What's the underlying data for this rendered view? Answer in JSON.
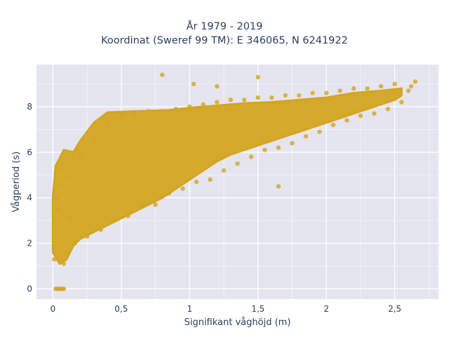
{
  "chart_data": {
    "type": "scatter",
    "title_line1": "År 1979 - 2019",
    "title_line2": "Koordinat (Sweref 99 TM): E 346065, N 6241922",
    "xlabel": "Signifikant våghöjd (m)",
    "ylabel": "Vågperiod (s)",
    "xlim": [
      -0.12,
      2.82
    ],
    "ylim": [
      -0.45,
      9.85
    ],
    "x_ticks": [
      0,
      0.5,
      1,
      1.5,
      2,
      2.5
    ],
    "x_tick_labels": [
      "0",
      "0,5",
      "1",
      "1,5",
      "2",
      "2,5"
    ],
    "y_ticks": [
      0,
      2,
      4,
      6,
      8
    ],
    "y_tick_labels": [
      "0",
      "2",
      "4",
      "6",
      "8"
    ],
    "grid": true,
    "legend": "none",
    "colors": {
      "marker": "#D4A520",
      "plot_bg": "#E5E5F0",
      "grid": "#ffffff",
      "text": "#2a3f5f"
    },
    "series": [
      {
        "points": [
          [
            0.02,
            0.0
          ],
          [
            0.03,
            0.0
          ],
          [
            0.04,
            0.0
          ],
          [
            0.05,
            0.0
          ],
          [
            0.06,
            0.0
          ],
          [
            0.07,
            0.0
          ],
          [
            0.08,
            0.0
          ],
          [
            0.01,
            1.3
          ],
          [
            0.02,
            1.8
          ],
          [
            0.03,
            2.5
          ],
          [
            0.04,
            3.5
          ],
          [
            0.03,
            4.0
          ],
          [
            0.05,
            4.6
          ],
          [
            0.06,
            5.2
          ],
          [
            0.08,
            1.1
          ],
          [
            0.1,
            1.6
          ],
          [
            0.1,
            4.9
          ],
          [
            0.12,
            3.1
          ],
          [
            0.14,
            5.6
          ],
          [
            0.16,
            2.0
          ],
          [
            0.2,
            5.9
          ],
          [
            0.25,
            2.3
          ],
          [
            0.3,
            6.6
          ],
          [
            0.35,
            2.6
          ],
          [
            0.4,
            7.2
          ],
          [
            0.45,
            3.0
          ],
          [
            0.5,
            7.6
          ],
          [
            0.55,
            3.2
          ],
          [
            0.6,
            7.7
          ],
          [
            0.65,
            3.6
          ],
          [
            0.7,
            7.8
          ],
          [
            0.75,
            3.7
          ],
          [
            0.8,
            7.8
          ],
          [
            0.85,
            4.2
          ],
          [
            0.9,
            7.9
          ],
          [
            0.95,
            4.4
          ],
          [
            1.0,
            8.0
          ],
          [
            1.05,
            4.7
          ],
          [
            1.1,
            8.1
          ],
          [
            1.15,
            4.8
          ],
          [
            1.2,
            8.2
          ],
          [
            1.25,
            5.2
          ],
          [
            1.3,
            8.3
          ],
          [
            1.35,
            5.5
          ],
          [
            1.4,
            8.3
          ],
          [
            1.45,
            5.8
          ],
          [
            1.5,
            8.4
          ],
          [
            1.55,
            6.1
          ],
          [
            1.6,
            8.4
          ],
          [
            1.65,
            6.2
          ],
          [
            1.7,
            8.5
          ],
          [
            1.75,
            6.4
          ],
          [
            1.8,
            8.5
          ],
          [
            1.85,
            6.7
          ],
          [
            1.9,
            8.6
          ],
          [
            1.95,
            6.9
          ],
          [
            2.0,
            8.6
          ],
          [
            2.05,
            7.2
          ],
          [
            2.1,
            8.7
          ],
          [
            2.15,
            7.4
          ],
          [
            2.2,
            8.8
          ],
          [
            2.25,
            7.6
          ],
          [
            2.3,
            8.8
          ],
          [
            2.35,
            7.7
          ],
          [
            2.4,
            8.9
          ],
          [
            2.45,
            7.9
          ],
          [
            2.5,
            9.0
          ],
          [
            2.55,
            8.2
          ],
          [
            2.6,
            8.7
          ],
          [
            2.62,
            8.9
          ],
          [
            2.65,
            9.1
          ],
          [
            0.8,
            9.4
          ],
          [
            1.5,
            9.3
          ],
          [
            1.03,
            9.0
          ],
          [
            1.2,
            8.9
          ],
          [
            1.65,
            4.5
          ]
        ]
      }
    ]
  }
}
